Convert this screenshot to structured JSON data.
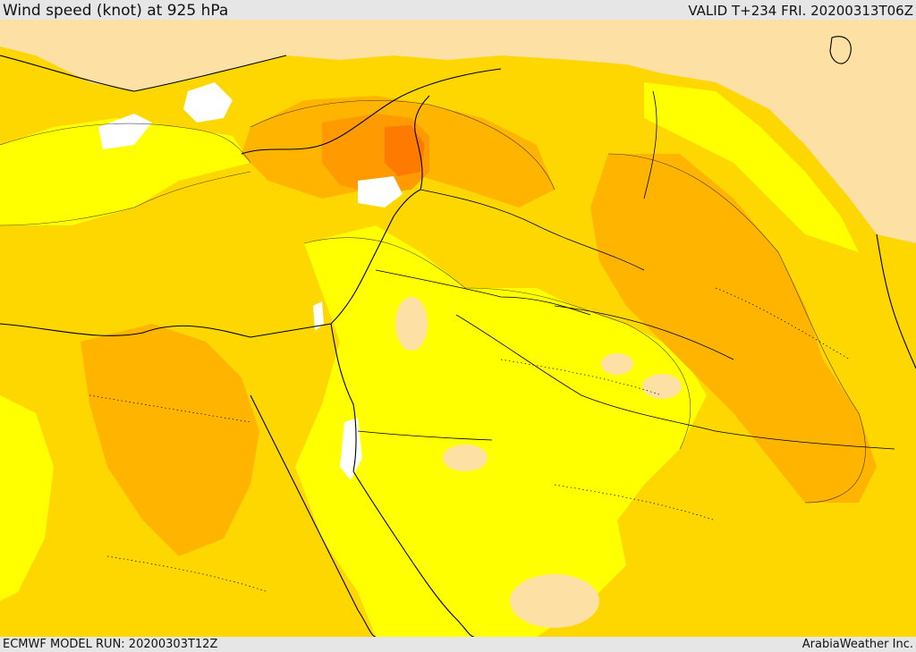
{
  "header": {
    "title": "Wind speed (knot) at 925 hPa",
    "valid": "VALID T+234 FRI. 20200313T06Z"
  },
  "footer": {
    "model_run": "ECMWF MODEL RUN: 20200303T12Z",
    "credit": "ArabiaWeather Inc."
  },
  "colors": {
    "calm": "#ffffff",
    "light": "#fde0a4",
    "low": "#ffff00",
    "moderate": "#ffd700",
    "strong": "#ffb400",
    "very_strong": "#ff9a00",
    "extreme": "#ff7a00",
    "coastline": "#000000"
  }
}
